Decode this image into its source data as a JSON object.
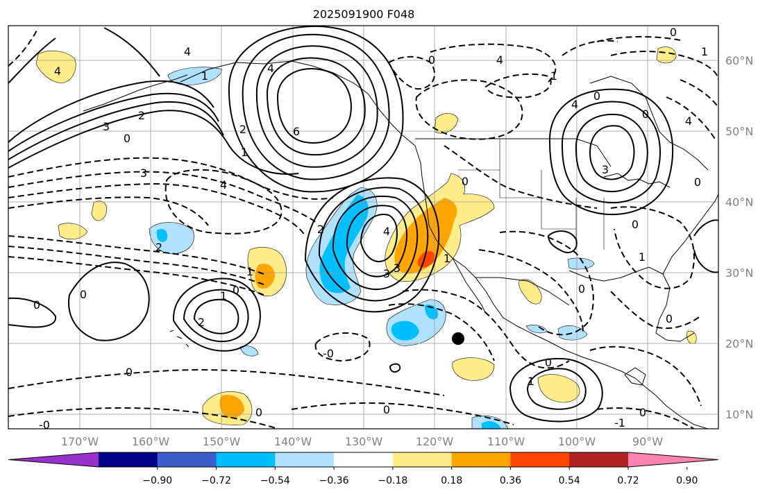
{
  "title": "2025091900 F048",
  "lon_labels": [
    "170°W",
    "160°W",
    "150°W",
    "140°W",
    "130°W",
    "120°W",
    "110°W",
    "100°W",
    "90°W"
  ],
  "lat_labels": [
    "60°N",
    "50°N",
    "40°N",
    "30°N",
    "20°N",
    "10°N"
  ],
  "colorbar": {
    "tick_labels": [
      "−0.90",
      "−0.72",
      "−0.54",
      "−0.36",
      "−0.18",
      "0.18",
      "0.36",
      "0.54",
      "0.72",
      "0.90"
    ],
    "colors": [
      "#9932cc",
      "#00008b",
      "#3a5fcd",
      "#00bfff",
      "#b0e2ff",
      "#ffffff",
      "#ffec8b",
      "#ffa500",
      "#ff4500",
      "#b22222",
      "#ff83b0"
    ],
    "extend": "both"
  },
  "contour_labels": {
    "aleutian_high": "6",
    "aleutian_ring": "4",
    "north_pacific_1": "3",
    "north_pacific_2": "2",
    "north_pacific_3": "0",
    "west_ring": "4",
    "dashed_pac_1": "3",
    "dashed_pac_2": "4",
    "dashed_pac_3": "2",
    "dashed_pac_4": "1",
    "cutoff_low_1": "4",
    "cutoff_low_2": "3",
    "cutoff_low_3": "2",
    "hawaii_high_1": "2",
    "hawaii_high_2": "1",
    "hawaii_high_3": "0",
    "west_zero": "0",
    "west_zero_2": "0",
    "great_lakes_high": "3",
    "great_lakes_0": "0",
    "gl_ring": "4",
    "nw_label": "4",
    "rockies_0": "0",
    "plains_0": "0",
    "gulf_1": "1",
    "mex_0": "0",
    "central_am_1": "1",
    "central_am_0": "0",
    "tropic_0": "0",
    "tropic_neg0": "-0",
    "tropic_neg0_2": "-0",
    "sw_0": "0",
    "sw_0b": "0",
    "se_1": "-1",
    "se_0": "0",
    "alaska_0": "0",
    "alaska_4": "4",
    "canada_0": "0",
    "canada_1": "1",
    "east_4": "4",
    "east_0": "0",
    "ne_0": "0",
    "ne_1": "1",
    "nw_1": "1",
    "hudson_0": "0",
    "hudson_2": "2",
    "pac_1": "1",
    "baja_1": "1",
    "baja_3": "3"
  }
}
